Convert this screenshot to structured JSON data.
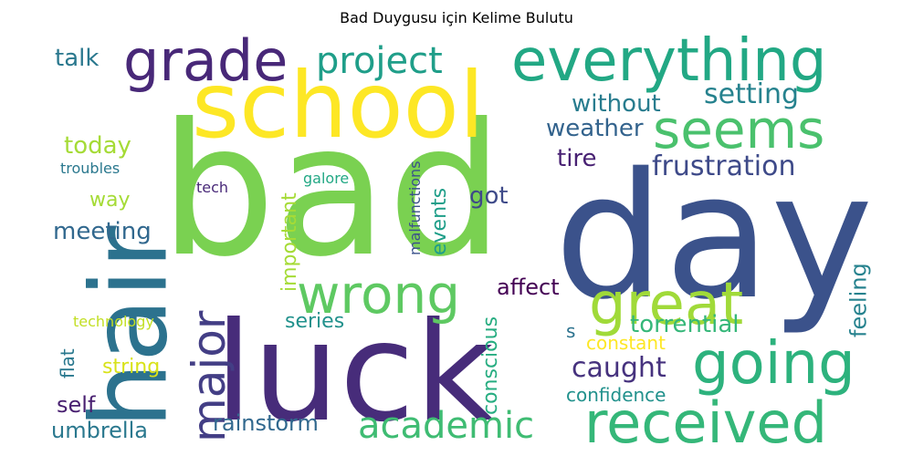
{
  "chart_data": {
    "type": "wordcloud",
    "title": "Bad Duygusu için Kelime Bulutu",
    "words": [
      {
        "text": "bad",
        "color": "#7ad151"
      },
      {
        "text": "day",
        "color": "#3b528b"
      },
      {
        "text": "luck",
        "color": "#472c7a"
      },
      {
        "text": "hair",
        "color": "#2c728e"
      },
      {
        "text": "school",
        "color": "#fde725"
      },
      {
        "text": "everything",
        "color": "#22a884"
      },
      {
        "text": "grade",
        "color": "#482878"
      },
      {
        "text": "received",
        "color": "#35b779"
      },
      {
        "text": "going",
        "color": "#2db27d"
      },
      {
        "text": "wrong",
        "color": "#5ec962"
      },
      {
        "text": "great",
        "color": "#a0da39"
      },
      {
        "text": "major",
        "color": "#433e85"
      },
      {
        "text": "seems",
        "color": "#4ac16d"
      },
      {
        "text": "project",
        "color": "#1f9e89"
      },
      {
        "text": "academic",
        "color": "#3fbc73"
      },
      {
        "text": "frustration",
        "color": "#3e4a89"
      },
      {
        "text": "setting",
        "color": "#26828e"
      },
      {
        "text": "caught",
        "color": "#46327e"
      },
      {
        "text": "rainstorm",
        "color": "#31688e"
      },
      {
        "text": "without",
        "color": "#287c8e"
      },
      {
        "text": "weather",
        "color": "#33638d"
      },
      {
        "text": "today",
        "color": "#a5db36"
      },
      {
        "text": "talk",
        "color": "#2a788e"
      },
      {
        "text": "meeting",
        "color": "#31688e"
      },
      {
        "text": "tire",
        "color": "#482173"
      },
      {
        "text": "got",
        "color": "#3e4a89"
      },
      {
        "text": "torrential",
        "color": "#35b779"
      },
      {
        "text": "umbrella",
        "color": "#2a788e"
      },
      {
        "text": "affect",
        "color": "#440154"
      },
      {
        "text": "self",
        "color": "#481f70"
      },
      {
        "text": "series",
        "color": "#21918c"
      },
      {
        "text": "way",
        "color": "#a5db36"
      },
      {
        "text": "string",
        "color": "#d8e219"
      },
      {
        "text": "feeling",
        "color": "#26828e"
      },
      {
        "text": "confidence",
        "color": "#21918c"
      },
      {
        "text": "constant",
        "color": "#fde725"
      },
      {
        "text": "important",
        "color": "#a5db36"
      },
      {
        "text": "events",
        "color": "#1f9e89"
      },
      {
        "text": "conscious",
        "color": "#27ad81"
      },
      {
        "text": "flat",
        "color": "#2a788e"
      },
      {
        "text": "s",
        "color": "#2c728e"
      },
      {
        "text": "troubles",
        "color": "#2a788e"
      },
      {
        "text": "technology",
        "color": "#c2df23"
      },
      {
        "text": "tech",
        "color": "#482878"
      },
      {
        "text": "galore",
        "color": "#22a884"
      },
      {
        "text": "malfunctions",
        "color": "#3b528b"
      }
    ]
  }
}
